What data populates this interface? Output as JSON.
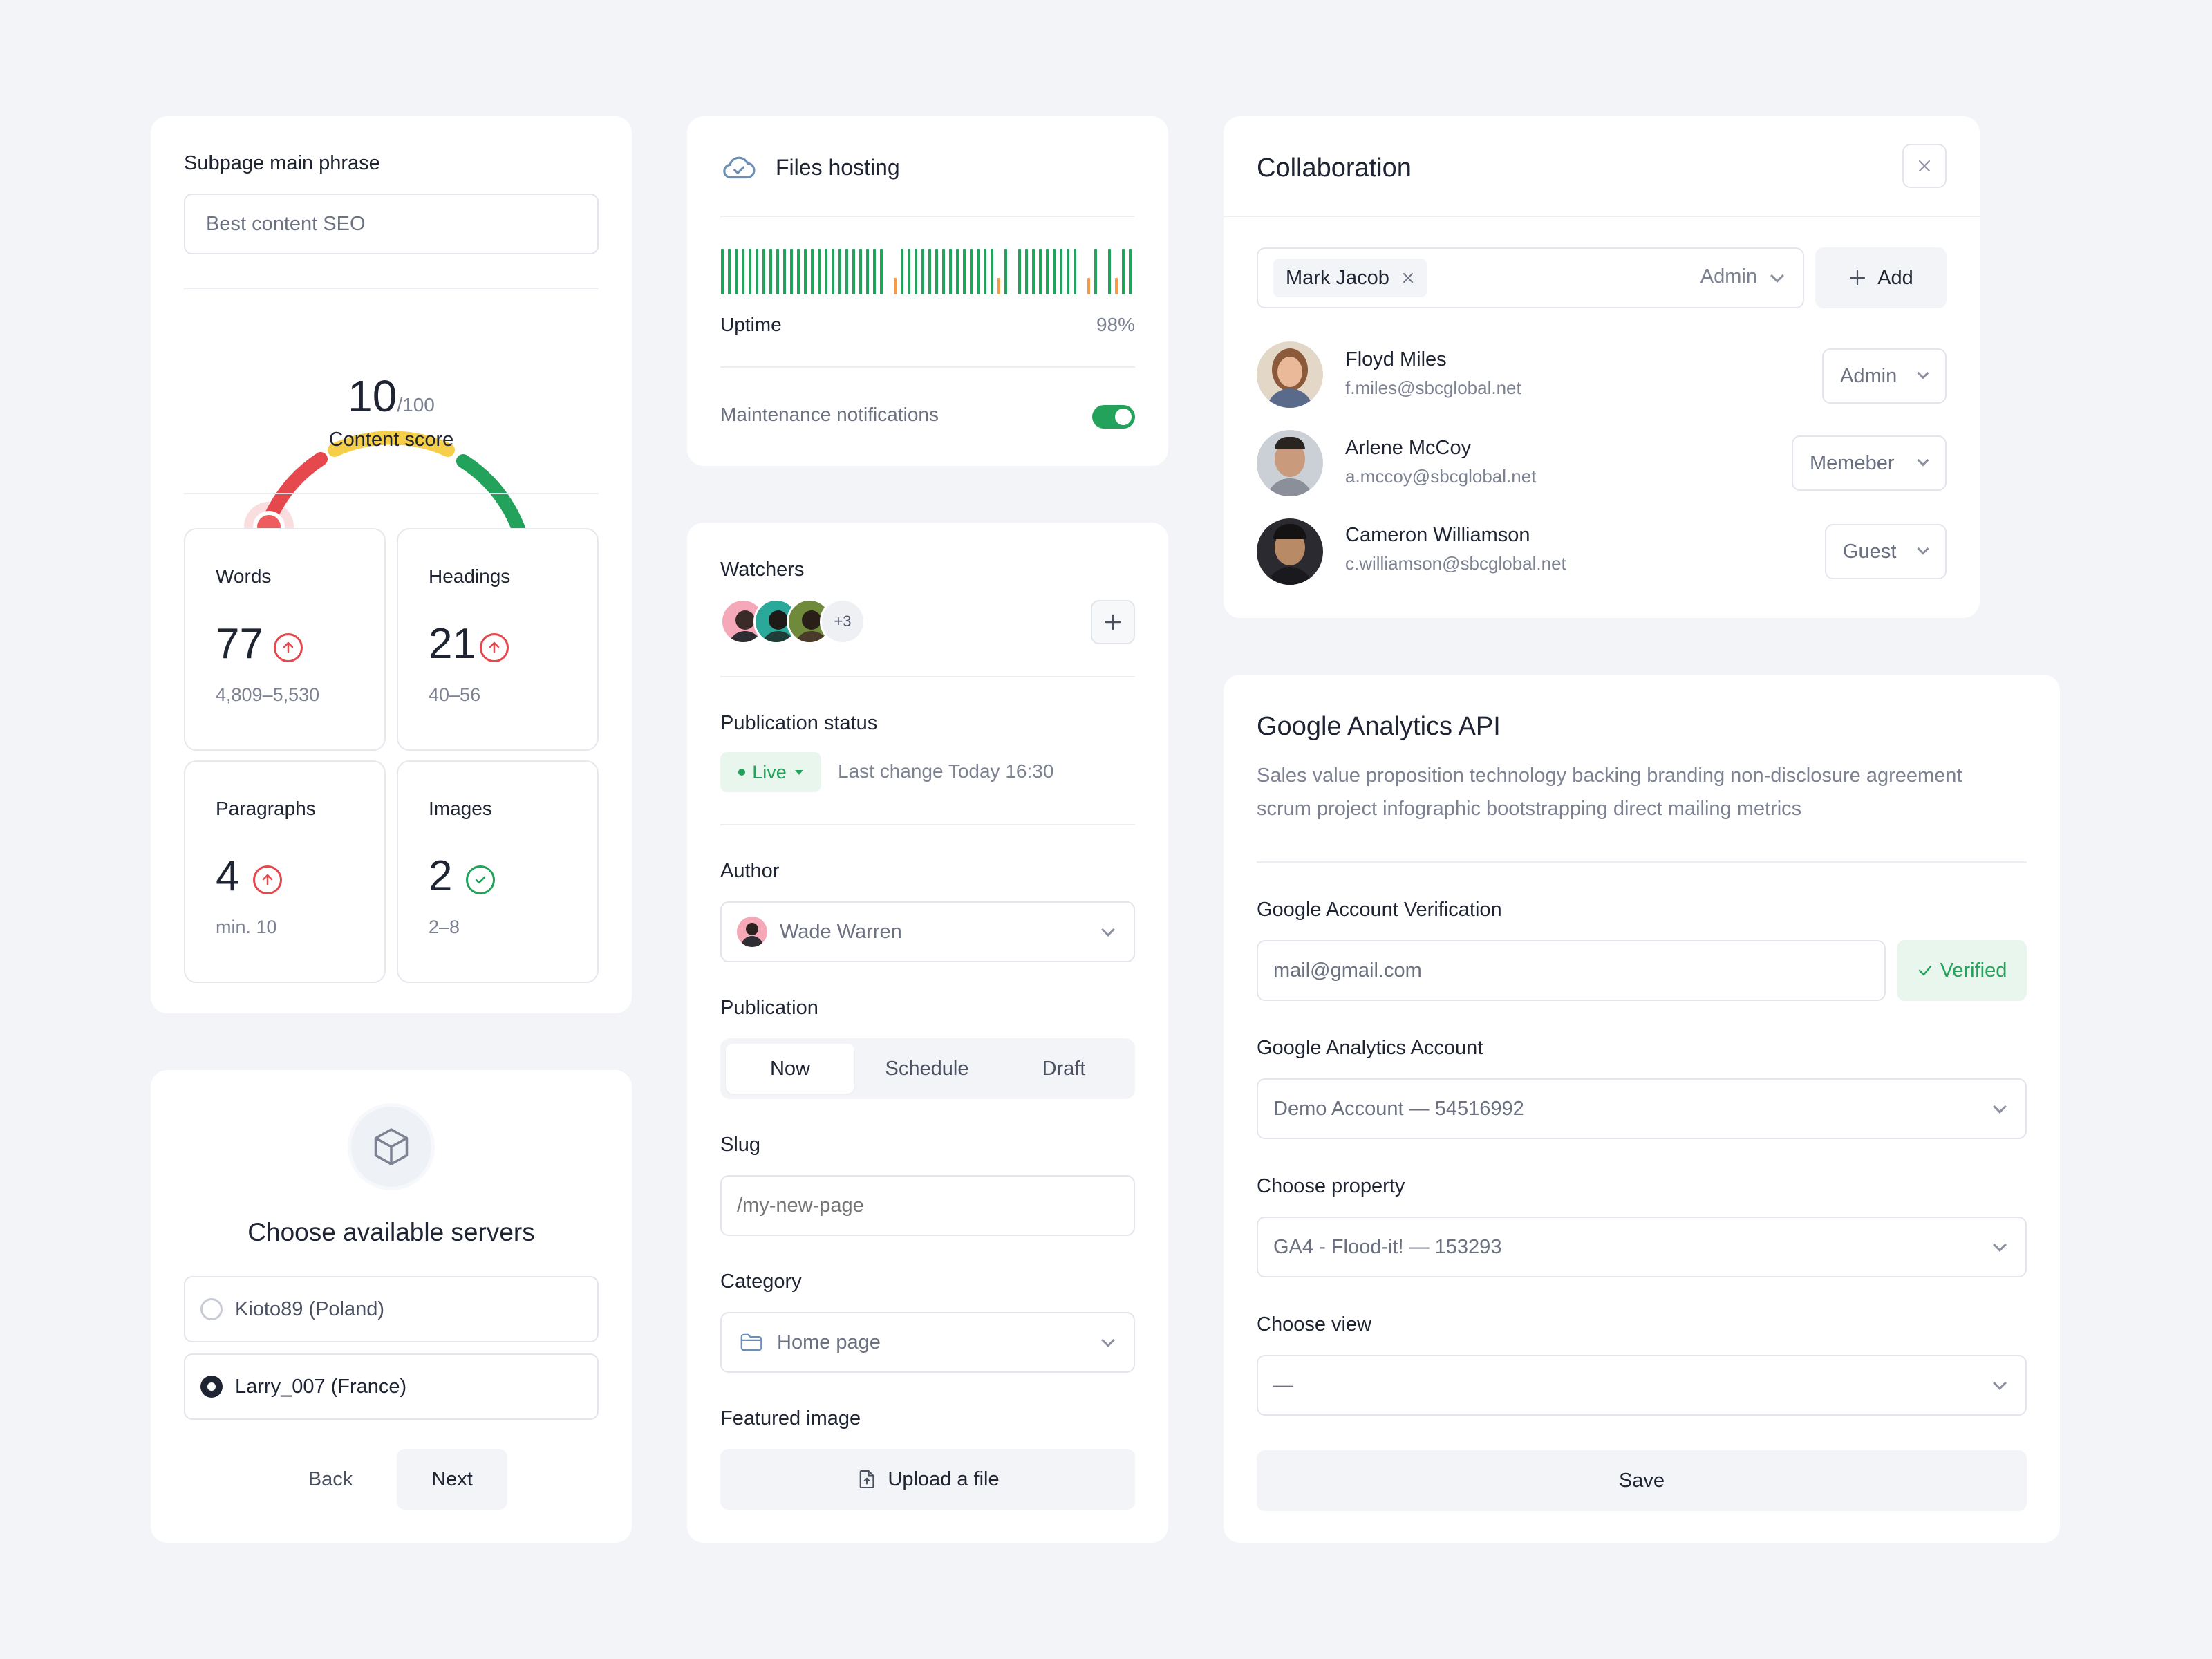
{
  "seo": {
    "phrase_label": "Subpage main phrase",
    "phrase_value": "Best content SEO",
    "score": "10",
    "score_max": "/100",
    "score_label": "Content score",
    "stats": [
      {
        "label": "Words",
        "value": "77",
        "range": "4,809–5,530",
        "status": "up"
      },
      {
        "label": "Headings",
        "value": "21",
        "range": "40–56",
        "status": "up"
      },
      {
        "label": "Paragraphs",
        "value": "4",
        "range": "min. 10",
        "status": "up"
      },
      {
        "label": "Images",
        "value": "2",
        "range": "2–8",
        "status": "ok"
      }
    ]
  },
  "servers": {
    "title": "Choose available servers",
    "options": [
      {
        "label": "Kioto89 (Poland)",
        "selected": false
      },
      {
        "label": "Larry_007 (France)",
        "selected": true
      }
    ],
    "back": "Back",
    "next": "Next"
  },
  "hosting": {
    "title": "Files hosting",
    "uptime_label": "Uptime",
    "uptime_value": "98%",
    "uptime_fraction": 0.98,
    "maintenance_label": "Maintenance notifications",
    "maintenance_on": true
  },
  "publish": {
    "watchers_label": "Watchers",
    "watchers_more": "+3",
    "status_label": "Publication status",
    "status_badge": "Live",
    "last_change": "Last change Today 16:30",
    "author_label": "Author",
    "author_value": "Wade Warren",
    "publication_label": "Publication",
    "publication_tabs": [
      "Now",
      "Schedule",
      "Draft"
    ],
    "publication_active": 0,
    "slug_label": "Slug",
    "slug_placeholder": "/my-new-page",
    "category_label": "Category",
    "category_value": "Home page",
    "featured_label": "Featured image",
    "upload_label": "Upload a file"
  },
  "collab": {
    "title": "Collaboration",
    "invite_name": "Mark Jacob",
    "invite_role": "Admin",
    "add_label": "Add",
    "members": [
      {
        "name": "Floyd Miles",
        "email": "f.miles@sbcglobal.net",
        "role": "Admin"
      },
      {
        "name": "Arlene McCoy",
        "email": "a.mccoy@sbcglobal.net",
        "role": "Memeber"
      },
      {
        "name": "Cameron Williamson",
        "email": "c.williamson@sbcglobal.net",
        "role": "Guest"
      }
    ]
  },
  "ga": {
    "title": "Google Analytics API",
    "description_line1": "Sales value proposition technology backing branding non-disclosure agreement",
    "description_line2": "scrum project infographic bootstrapping direct mailing metrics",
    "verify_label": "Google Account Verification",
    "email_value": "mail@gmail.com",
    "verified_label": "Verified",
    "account_label": "Google Analytics Account",
    "account_value": "Demo Account — 54516992",
    "property_label": "Choose property",
    "property_value": "GA4 - Flood-it! — 153293",
    "view_label": "Choose view",
    "view_value": "—",
    "save_label": "Save"
  },
  "colors": {
    "green": "#22a25a",
    "red": "#e5484d",
    "yellow": "#f5cf4a",
    "orange": "#f59a45",
    "verified_bg": "#e8f6ee"
  }
}
